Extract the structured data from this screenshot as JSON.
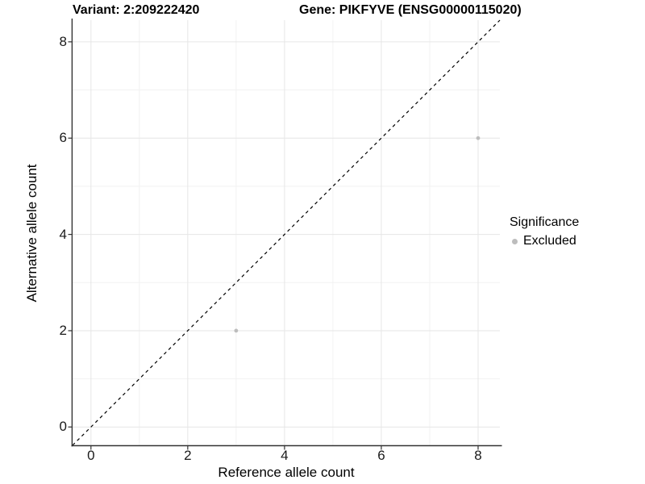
{
  "chart_data": {
    "type": "scatter",
    "title_left": "Variant: 2:209222420",
    "title_right": "Gene: PIKFYVE (ENSG00000115020)",
    "xlabel": "Reference allele count",
    "ylabel": "Alternative allele count",
    "xlim": [
      -0.38,
      8.45
    ],
    "ylim": [
      -0.38,
      8.45
    ],
    "x_ticks": [
      0,
      2,
      4,
      6,
      8
    ],
    "y_ticks": [
      0,
      2,
      4,
      6,
      8
    ],
    "x_minor_ticks": [
      1,
      3,
      5,
      7
    ],
    "y_minor_ticks": [
      1,
      3,
      5,
      7
    ],
    "grid": "on",
    "legend": {
      "position": "right",
      "title": "Significance",
      "items": [
        {
          "label": "Excluded",
          "color": "#bdbdbd"
        }
      ]
    },
    "series": [
      {
        "name": "Excluded",
        "color": "#bdbdbd",
        "points": [
          {
            "x": 3,
            "y": 2
          },
          {
            "x": 8,
            "y": 6
          }
        ]
      }
    ],
    "reference_line": {
      "type": "identity",
      "slope": 1,
      "intercept": 0,
      "style": "dashed",
      "color": "#000000"
    }
  },
  "colors": {
    "background": "#ffffff",
    "grid_major": "#e6e6e6",
    "grid_minor": "#f2f2f2",
    "axis_line": "#333333",
    "tick_mark": "#333333",
    "point": "#bdbdbd",
    "reference_line": "#000000",
    "text": "#000000"
  }
}
